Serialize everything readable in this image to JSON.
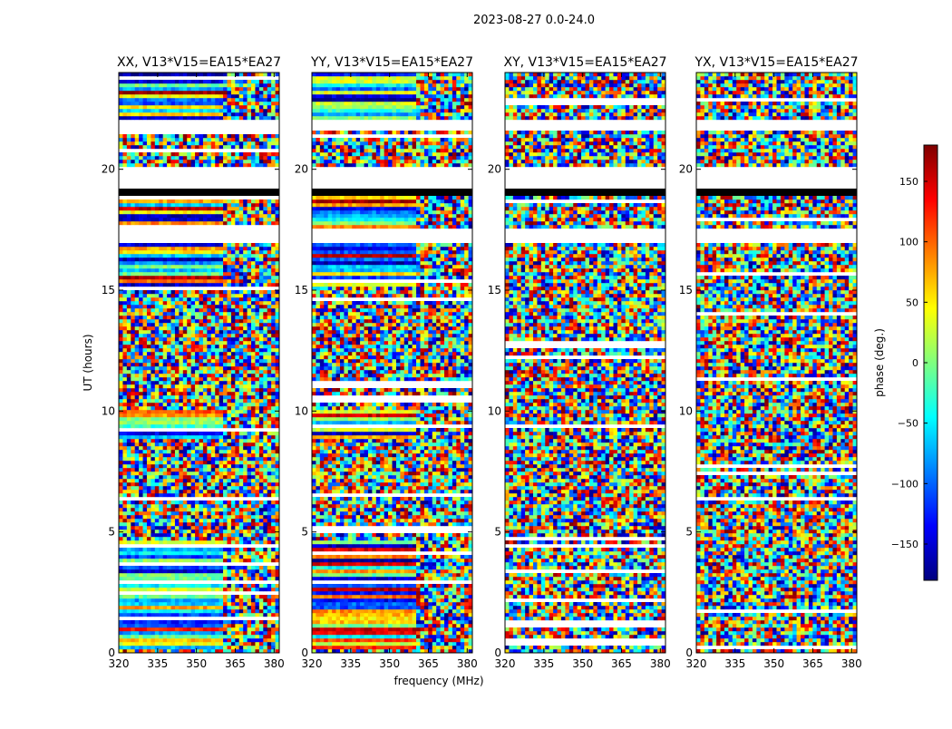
{
  "chart_data": {
    "type": "heatmap",
    "title": "2023-08-27 0.0-24.0",
    "xlabel": "frequency (MHz)",
    "ylabel": "UT (hours)",
    "xlim": [
      320,
      382
    ],
    "ylim": [
      0,
      24
    ],
    "x_ticks": [
      "320",
      "335",
      "350",
      "365",
      "380"
    ],
    "y_ticks": [
      "0",
      "5",
      "10",
      "15",
      "20"
    ],
    "panels": [
      {
        "title": "XX, V13*V15=EA15*EA27"
      },
      {
        "title": "YY, V13*V15=EA15*EA27"
      },
      {
        "title": "XY, V13*V15=EA15*EA27"
      },
      {
        "title": "YX, V13*V15=EA15*EA27"
      }
    ],
    "colorbar": {
      "label": "phase (deg.)",
      "range": [
        -180,
        180
      ],
      "ticks": [
        "150",
        "100",
        "50",
        "0",
        "−50",
        "−100",
        "−150"
      ],
      "colormap": "jet"
    },
    "data_gaps_hours": [
      [
        18.9,
        20.1
      ],
      [
        17.0,
        17.6
      ],
      [
        21.6,
        22.0
      ]
    ]
  },
  "colors": {
    "jet": [
      "#00007f",
      "#0000ff",
      "#007fff",
      "#00ffff",
      "#7fff7f",
      "#ffff00",
      "#ff7f00",
      "#ff0000",
      "#7f0000"
    ],
    "axis": "#000000",
    "background": "#ffffff"
  }
}
